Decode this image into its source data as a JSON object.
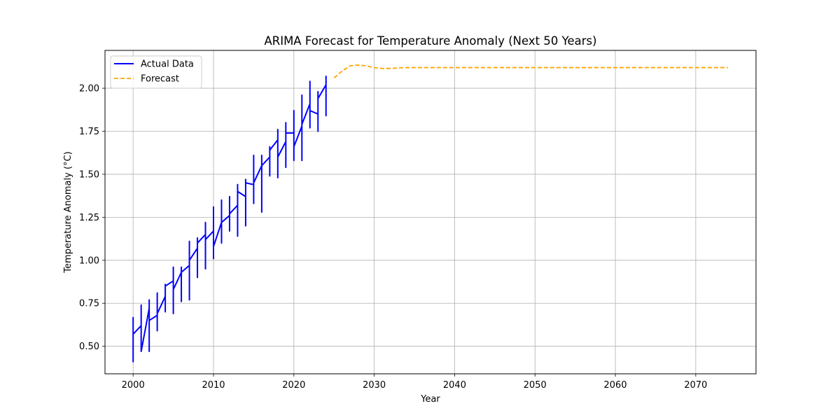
{
  "chart_data": {
    "type": "line",
    "title": "ARIMA Forecast for Temperature Anomaly (Next 50 Years)",
    "xlabel": "Year",
    "ylabel": "Temperature Anomaly (°C)",
    "xlim": [
      1996.5,
      2077.5
    ],
    "ylim": [
      0.34,
      2.22
    ],
    "x_ticks": [
      2000,
      2010,
      2020,
      2030,
      2040,
      2050,
      2060,
      2070
    ],
    "y_ticks": [
      0.5,
      0.75,
      1.0,
      1.25,
      1.5,
      1.75,
      2.0
    ],
    "y_tick_labels": [
      "0.50",
      "0.75",
      "1.00",
      "1.25",
      "1.50",
      "1.75",
      "2.00"
    ],
    "grid": true,
    "legend_position": "top-left",
    "series": [
      {
        "name": "Actual Data",
        "color": "#0000ff",
        "style": "solid",
        "points": [
          [
            2000,
            0.67
          ],
          [
            2000,
            0.41
          ],
          [
            2000,
            0.57
          ],
          [
            2001,
            0.62
          ],
          [
            2001,
            0.74
          ],
          [
            2001,
            0.47
          ],
          [
            2002,
            0.72
          ],
          [
            2002,
            0.47
          ],
          [
            2002,
            0.77
          ],
          [
            2002,
            0.65
          ],
          [
            2003,
            0.68
          ],
          [
            2003,
            0.81
          ],
          [
            2003,
            0.59
          ],
          [
            2003,
            0.69
          ],
          [
            2004,
            0.79
          ],
          [
            2004,
            0.86
          ],
          [
            2004,
            0.7
          ],
          [
            2004,
            0.85
          ],
          [
            2005,
            0.88
          ],
          [
            2005,
            0.96
          ],
          [
            2005,
            0.69
          ],
          [
            2005,
            0.83
          ],
          [
            2006,
            0.93
          ],
          [
            2006,
            0.96
          ],
          [
            2006,
            0.76
          ],
          [
            2006,
            0.93
          ],
          [
            2007,
            0.97
          ],
          [
            2007,
            1.11
          ],
          [
            2007,
            0.77
          ],
          [
            2007,
            1.0
          ],
          [
            2008,
            1.07
          ],
          [
            2008,
            1.13
          ],
          [
            2008,
            0.9
          ],
          [
            2008,
            1.1
          ],
          [
            2009,
            1.15
          ],
          [
            2009,
            1.22
          ],
          [
            2009,
            0.95
          ],
          [
            2009,
            1.12
          ],
          [
            2010,
            1.17
          ],
          [
            2010,
            1.31
          ],
          [
            2010,
            1.01
          ],
          [
            2010,
            1.08
          ],
          [
            2011,
            1.22
          ],
          [
            2011,
            1.35
          ],
          [
            2011,
            1.1
          ],
          [
            2011,
            1.22
          ],
          [
            2012,
            1.26
          ],
          [
            2012,
            1.37
          ],
          [
            2012,
            1.17
          ],
          [
            2012,
            1.27
          ],
          [
            2013,
            1.32
          ],
          [
            2013,
            1.44
          ],
          [
            2013,
            1.14
          ],
          [
            2013,
            1.4
          ],
          [
            2014,
            1.37
          ],
          [
            2014,
            1.47
          ],
          [
            2014,
            1.2
          ],
          [
            2014,
            1.45
          ],
          [
            2015,
            1.44
          ],
          [
            2015,
            1.61
          ],
          [
            2015,
            1.33
          ],
          [
            2015,
            1.45
          ],
          [
            2016,
            1.55
          ],
          [
            2016,
            1.61
          ],
          [
            2016,
            1.28
          ],
          [
            2016,
            1.55
          ],
          [
            2017,
            1.6
          ],
          [
            2017,
            1.66
          ],
          [
            2017,
            1.49
          ],
          [
            2017,
            1.64
          ],
          [
            2018,
            1.7
          ],
          [
            2018,
            1.76
          ],
          [
            2018,
            1.48
          ],
          [
            2018,
            1.6
          ],
          [
            2019,
            1.69
          ],
          [
            2019,
            1.8
          ],
          [
            2019,
            1.54
          ],
          [
            2019,
            1.74
          ],
          [
            2020,
            1.74
          ],
          [
            2020,
            1.87
          ],
          [
            2020,
            1.58
          ],
          [
            2020,
            1.66
          ],
          [
            2021,
            1.78
          ],
          [
            2021,
            1.96
          ],
          [
            2021,
            1.58
          ],
          [
            2021,
            1.79
          ],
          [
            2022,
            1.91
          ],
          [
            2022,
            2.04
          ],
          [
            2022,
            1.77
          ],
          [
            2022,
            1.87
          ],
          [
            2023,
            1.85
          ],
          [
            2023,
            1.98
          ],
          [
            2023,
            1.75
          ],
          [
            2023,
            1.94
          ],
          [
            2024,
            2.02
          ],
          [
            2024,
            2.07
          ],
          [
            2024,
            1.84
          ],
          [
            2024,
            1.86
          ]
        ]
      },
      {
        "name": "Forecast",
        "color": "#ffa500",
        "style": "dashed",
        "points": [
          [
            2025,
            2.06
          ],
          [
            2026,
            2.1
          ],
          [
            2027,
            2.13
          ],
          [
            2028,
            2.135
          ],
          [
            2029,
            2.13
          ],
          [
            2030,
            2.12
          ],
          [
            2031,
            2.115
          ],
          [
            2032,
            2.115
          ],
          [
            2033,
            2.118
          ],
          [
            2034,
            2.12
          ],
          [
            2035,
            2.12
          ],
          [
            2036,
            2.12
          ],
          [
            2037,
            2.12
          ],
          [
            2038,
            2.12
          ],
          [
            2039,
            2.12
          ],
          [
            2040,
            2.12
          ],
          [
            2041,
            2.12
          ],
          [
            2042,
            2.12
          ],
          [
            2043,
            2.12
          ],
          [
            2044,
            2.12
          ],
          [
            2045,
            2.12
          ],
          [
            2046,
            2.12
          ],
          [
            2047,
            2.12
          ],
          [
            2048,
            2.12
          ],
          [
            2049,
            2.12
          ],
          [
            2050,
            2.12
          ],
          [
            2051,
            2.12
          ],
          [
            2052,
            2.12
          ],
          [
            2053,
            2.12
          ],
          [
            2054,
            2.12
          ],
          [
            2055,
            2.12
          ],
          [
            2056,
            2.12
          ],
          [
            2057,
            2.12
          ],
          [
            2058,
            2.12
          ],
          [
            2059,
            2.12
          ],
          [
            2060,
            2.12
          ],
          [
            2061,
            2.12
          ],
          [
            2062,
            2.12
          ],
          [
            2063,
            2.12
          ],
          [
            2064,
            2.12
          ],
          [
            2065,
            2.12
          ],
          [
            2066,
            2.12
          ],
          [
            2067,
            2.12
          ],
          [
            2068,
            2.12
          ],
          [
            2069,
            2.12
          ],
          [
            2070,
            2.12
          ],
          [
            2071,
            2.12
          ],
          [
            2072,
            2.12
          ],
          [
            2073,
            2.12
          ],
          [
            2074,
            2.12
          ]
        ]
      }
    ]
  }
}
